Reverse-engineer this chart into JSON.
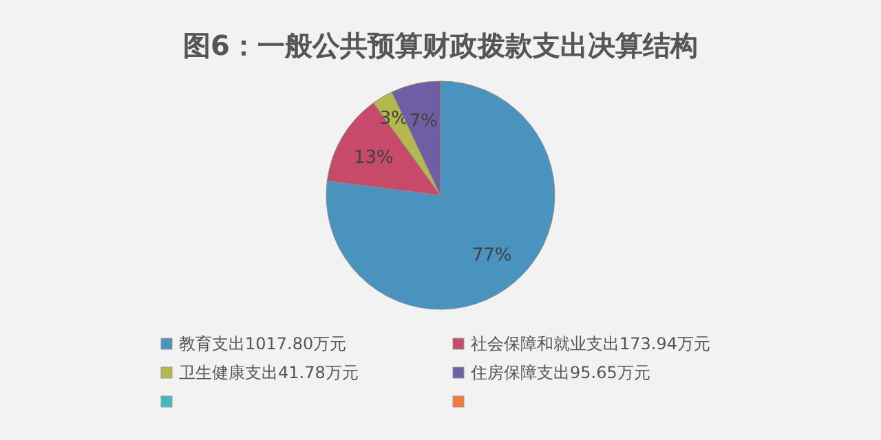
{
  "chart_data": {
    "type": "pie",
    "title": "图6：一般公共预算财政拨款支出决算结构",
    "categories": [
      "教育支出1017.80万元",
      "社会保障和就业支出173.94万元",
      "卫生健康支出41.78万元",
      "住房保障支出95.65万元",
      null,
      null
    ],
    "values": [
      77,
      13,
      3,
      7,
      0,
      0
    ],
    "colors": [
      "#4a93bf",
      "#c74a6a",
      "#b5b84e",
      "#6f5ea3",
      "#45b8c0",
      "#f47a3a"
    ],
    "value_labels": [
      "77%",
      "13%",
      "3%",
      "7%",
      null,
      null
    ],
    "legend": "bottom"
  }
}
